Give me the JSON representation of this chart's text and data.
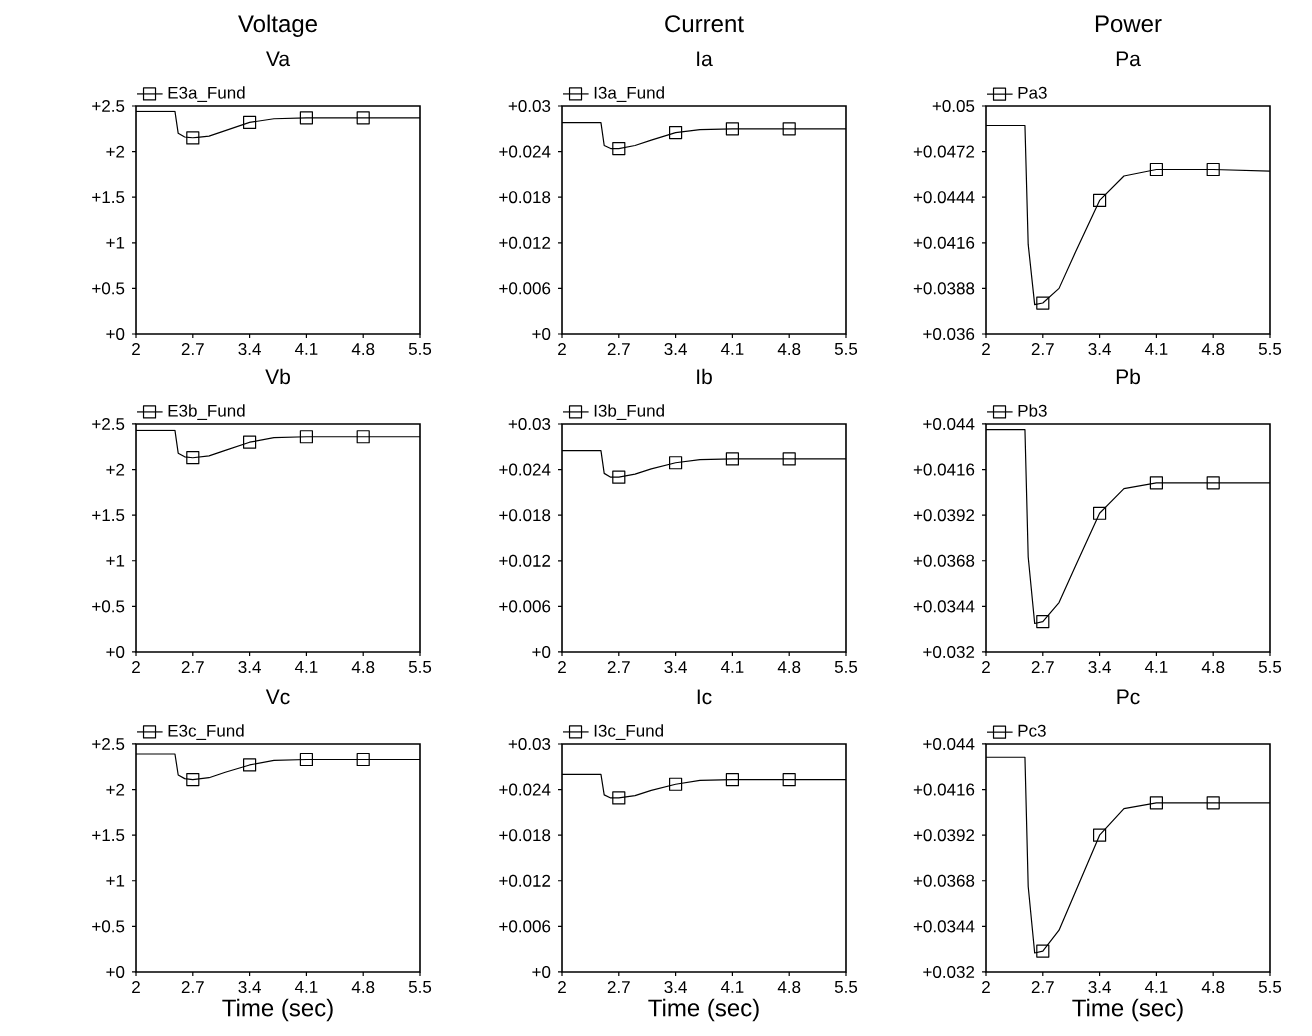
{
  "chart_data": [
    {
      "type": "line",
      "title": "Voltage",
      "subtitle": "Va",
      "x": [
        2,
        2.48,
        2.52,
        2.6,
        2.7,
        2.9,
        3.1,
        3.4,
        3.7,
        4.1,
        4.8,
        5.5
      ],
      "series": [
        {
          "name": "E3a_Fund",
          "color": "#000000",
          "marker": "none",
          "values": [
            2.44,
            2.44,
            2.2,
            2.16,
            2.15,
            2.17,
            2.23,
            2.32,
            2.36,
            2.37,
            2.37,
            2.37
          ]
        },
        {
          "type": "scatter",
          "color": "#000000",
          "x": [
            2.7,
            3.4,
            4.1,
            4.8
          ],
          "values": [
            2.15,
            2.32,
            2.37,
            2.37
          ]
        }
      ],
      "xlim": [
        2,
        5.5
      ],
      "xticks": [
        2,
        2.7,
        3.4,
        4.1,
        4.8,
        5.5
      ],
      "ylim": [
        0,
        2.5
      ],
      "yticks": [
        {
          "value": 0,
          "label": "+0"
        },
        {
          "value": 0.5,
          "label": "+0.5"
        },
        {
          "value": 1,
          "label": "+1"
        },
        {
          "value": 1.5,
          "label": "+1.5"
        },
        {
          "value": 2,
          "label": "+2"
        },
        {
          "value": 2.5,
          "label": "+2.5"
        }
      ],
      "legend": "top left",
      "marker": "square"
    },
    {
      "type": "line",
      "title": "Current",
      "subtitle": "Ia",
      "x": [
        2,
        2.48,
        2.52,
        2.6,
        2.7,
        2.9,
        3.1,
        3.4,
        3.7,
        4.1,
        4.8,
        5.5
      ],
      "series": [
        {
          "name": "I3a_Fund",
          "color": "#000000",
          "marker": "none",
          "values": [
            0.0278,
            0.0278,
            0.0248,
            0.0244,
            0.0244,
            0.0248,
            0.0255,
            0.0265,
            0.0269,
            0.027,
            0.027,
            0.027
          ]
        },
        {
          "type": "scatter",
          "color": "#000000",
          "x": [
            2.7,
            3.4,
            4.1,
            4.8
          ],
          "values": [
            0.0244,
            0.0265,
            0.027,
            0.027
          ]
        }
      ],
      "xlim": [
        2,
        5.5
      ],
      "xticks": [
        2,
        2.7,
        3.4,
        4.1,
        4.8,
        5.5
      ],
      "ylim": [
        0,
        0.03
      ],
      "yticks": [
        {
          "value": 0,
          "label": "+0"
        },
        {
          "value": 0.006,
          "label": "+0.006"
        },
        {
          "value": 0.012,
          "label": "+0.012"
        },
        {
          "value": 0.018,
          "label": "+0.018"
        },
        {
          "value": 0.024,
          "label": "+0.024"
        },
        {
          "value": 0.03,
          "label": "+0.03"
        }
      ],
      "legend": "top left",
      "marker": "square"
    },
    {
      "type": "line",
      "title": "Power",
      "subtitle": "Pa",
      "x": [
        2,
        2.48,
        2.52,
        2.6,
        2.7,
        2.9,
        3.1,
        3.4,
        3.7,
        4.1,
        4.8,
        5.5
      ],
      "series": [
        {
          "name": "Pa3",
          "color": "#000000",
          "marker": "none",
          "values": [
            0.0488,
            0.0488,
            0.0415,
            0.0378,
            0.0379,
            0.0388,
            0.041,
            0.0442,
            0.0457,
            0.0461,
            0.0461,
            0.046
          ]
        },
        {
          "type": "scatter",
          "color": "#000000",
          "x": [
            2.7,
            3.4,
            4.1,
            4.8
          ],
          "values": [
            0.0379,
            0.0442,
            0.0461,
            0.0461
          ]
        }
      ],
      "xlim": [
        2,
        5.5
      ],
      "xticks": [
        2,
        2.7,
        3.4,
        4.1,
        4.8,
        5.5
      ],
      "ylim": [
        0.036,
        0.05
      ],
      "yticks": [
        {
          "value": 0.036,
          "label": "+0.036"
        },
        {
          "value": 0.0388,
          "label": "+0.0388"
        },
        {
          "value": 0.0416,
          "label": "+0.0416"
        },
        {
          "value": 0.0444,
          "label": "+0.0444"
        },
        {
          "value": 0.0472,
          "label": "+0.0472"
        },
        {
          "value": 0.05,
          "label": "+0.05"
        }
      ],
      "legend": "top left",
      "marker": "square"
    },
    {
      "type": "line",
      "title": "Vb",
      "x": [
        2,
        2.48,
        2.52,
        2.6,
        2.7,
        2.9,
        3.1,
        3.4,
        3.7,
        4.1,
        4.8,
        5.5
      ],
      "series": [
        {
          "name": "E3b_Fund",
          "color": "#000000",
          "marker": "none",
          "values": [
            2.43,
            2.43,
            2.18,
            2.14,
            2.13,
            2.15,
            2.21,
            2.3,
            2.35,
            2.36,
            2.36,
            2.36
          ]
        },
        {
          "type": "scatter",
          "color": "#000000",
          "x": [
            2.7,
            3.4,
            4.1,
            4.8
          ],
          "values": [
            2.13,
            2.3,
            2.36,
            2.36
          ]
        }
      ],
      "xlim": [
        2,
        5.5
      ],
      "xticks": [
        2,
        2.7,
        3.4,
        4.1,
        4.8,
        5.5
      ],
      "ylim": [
        0,
        2.5
      ],
      "yticks": [
        {
          "value": 0,
          "label": "+0"
        },
        {
          "value": 0.5,
          "label": "+0.5"
        },
        {
          "value": 1,
          "label": "+1"
        },
        {
          "value": 1.5,
          "label": "+1.5"
        },
        {
          "value": 2,
          "label": "+2"
        },
        {
          "value": 2.5,
          "label": "+2.5"
        }
      ],
      "legend": "top left",
      "marker": "square"
    },
    {
      "type": "line",
      "title": "Ib",
      "x": [
        2,
        2.48,
        2.52,
        2.6,
        2.7,
        2.9,
        3.1,
        3.4,
        3.7,
        4.1,
        4.8,
        5.5
      ],
      "series": [
        {
          "name": "I3b_Fund",
          "color": "#000000",
          "marker": "none",
          "values": [
            0.0265,
            0.0265,
            0.0235,
            0.023,
            0.023,
            0.0234,
            0.0241,
            0.0249,
            0.0253,
            0.0254,
            0.0254,
            0.0254
          ]
        },
        {
          "type": "scatter",
          "color": "#000000",
          "x": [
            2.7,
            3.4,
            4.1,
            4.8
          ],
          "values": [
            0.023,
            0.0249,
            0.0254,
            0.0254
          ]
        }
      ],
      "xlim": [
        2,
        5.5
      ],
      "xticks": [
        2,
        2.7,
        3.4,
        4.1,
        4.8,
        5.5
      ],
      "ylim": [
        0,
        0.03
      ],
      "yticks": [
        {
          "value": 0,
          "label": "+0"
        },
        {
          "value": 0.006,
          "label": "+0.006"
        },
        {
          "value": 0.012,
          "label": "+0.012"
        },
        {
          "value": 0.018,
          "label": "+0.018"
        },
        {
          "value": 0.024,
          "label": "+0.024"
        },
        {
          "value": 0.03,
          "label": "+0.03"
        }
      ],
      "legend": "top left",
      "marker": "square"
    },
    {
      "type": "line",
      "title": "Pb",
      "x": [
        2,
        2.48,
        2.52,
        2.6,
        2.7,
        2.9,
        3.1,
        3.4,
        3.7,
        4.1,
        4.8,
        5.5
      ],
      "series": [
        {
          "name": "Pb3",
          "color": "#000000",
          "marker": "none",
          "values": [
            0.0437,
            0.0437,
            0.037,
            0.0335,
            0.0336,
            0.0346,
            0.0365,
            0.0393,
            0.0406,
            0.0409,
            0.0409,
            0.0409
          ]
        },
        {
          "type": "scatter",
          "color": "#000000",
          "x": [
            2.7,
            3.4,
            4.1,
            4.8
          ],
          "values": [
            0.0336,
            0.0393,
            0.0409,
            0.0409
          ]
        }
      ],
      "xlim": [
        2,
        5.5
      ],
      "xticks": [
        2,
        2.7,
        3.4,
        4.1,
        4.8,
        5.5
      ],
      "ylim": [
        0.032,
        0.044
      ],
      "yticks": [
        {
          "value": 0.032,
          "label": "+0.032"
        },
        {
          "value": 0.0344,
          "label": "+0.0344"
        },
        {
          "value": 0.0368,
          "label": "+0.0368"
        },
        {
          "value": 0.0392,
          "label": "+0.0392"
        },
        {
          "value": 0.0416,
          "label": "+0.0416"
        },
        {
          "value": 0.044,
          "label": "+0.044"
        }
      ],
      "legend": "top left",
      "marker": "square"
    },
    {
      "type": "line",
      "title": "Vc",
      "xlabel": "Time (sec)",
      "x": [
        2,
        2.48,
        2.52,
        2.6,
        2.7,
        2.9,
        3.1,
        3.4,
        3.7,
        4.1,
        4.8,
        5.5
      ],
      "series": [
        {
          "name": "E3c_Fund",
          "color": "#000000",
          "marker": "none",
          "values": [
            2.39,
            2.39,
            2.16,
            2.12,
            2.11,
            2.13,
            2.19,
            2.27,
            2.32,
            2.33,
            2.33,
            2.33
          ]
        },
        {
          "type": "scatter",
          "color": "#000000",
          "x": [
            2.7,
            3.4,
            4.1,
            4.8
          ],
          "values": [
            2.11,
            2.27,
            2.33,
            2.33
          ]
        }
      ],
      "xlim": [
        2,
        5.5
      ],
      "xticks": [
        2,
        2.7,
        3.4,
        4.1,
        4.8,
        5.5
      ],
      "ylim": [
        0,
        2.5
      ],
      "yticks": [
        {
          "value": 0,
          "label": "+0"
        },
        {
          "value": 0.5,
          "label": "+0.5"
        },
        {
          "value": 1,
          "label": "+1"
        },
        {
          "value": 1.5,
          "label": "+1.5"
        },
        {
          "value": 2,
          "label": "+2"
        },
        {
          "value": 2.5,
          "label": "+2.5"
        }
      ],
      "legend": "top left",
      "marker": "square"
    },
    {
      "type": "line",
      "title": "Ic",
      "xlabel": "Time (sec)",
      "x": [
        2,
        2.48,
        2.52,
        2.6,
        2.7,
        2.9,
        3.1,
        3.4,
        3.7,
        4.1,
        4.8,
        5.5
      ],
      "series": [
        {
          "name": "I3c_Fund",
          "color": "#000000",
          "marker": "none",
          "values": [
            0.026,
            0.026,
            0.0233,
            0.0229,
            0.0229,
            0.0232,
            0.0239,
            0.0247,
            0.0252,
            0.0253,
            0.0253,
            0.0253
          ]
        },
        {
          "type": "scatter",
          "color": "#000000",
          "x": [
            2.7,
            3.4,
            4.1,
            4.8
          ],
          "values": [
            0.0229,
            0.0247,
            0.0253,
            0.0253
          ]
        }
      ],
      "xlim": [
        2,
        5.5
      ],
      "xticks": [
        2,
        2.7,
        3.4,
        4.1,
        4.8,
        5.5
      ],
      "ylim": [
        0,
        0.03
      ],
      "yticks": [
        {
          "value": 0,
          "label": "+0"
        },
        {
          "value": 0.006,
          "label": "+0.006"
        },
        {
          "value": 0.012,
          "label": "+0.012"
        },
        {
          "value": 0.018,
          "label": "+0.018"
        },
        {
          "value": 0.024,
          "label": "+0.024"
        },
        {
          "value": 0.03,
          "label": "+0.03"
        }
      ],
      "legend": "top left",
      "marker": "square"
    },
    {
      "type": "line",
      "title": "Pc",
      "xlabel": "Time (sec)",
      "x": [
        2,
        2.48,
        2.52,
        2.6,
        2.7,
        2.9,
        3.1,
        3.4,
        3.7,
        4.1,
        4.8,
        5.5
      ],
      "series": [
        {
          "name": "Pc3",
          "color": "#000000",
          "marker": "none",
          "values": [
            0.0433,
            0.0433,
            0.0365,
            0.033,
            0.0331,
            0.0342,
            0.0362,
            0.0392,
            0.0406,
            0.0409,
            0.0409,
            0.0409
          ]
        },
        {
          "type": "scatter",
          "color": "#000000",
          "x": [
            2.7,
            3.4,
            4.1,
            4.8
          ],
          "values": [
            0.0331,
            0.0392,
            0.0409,
            0.0409
          ]
        }
      ],
      "xlim": [
        2,
        5.5
      ],
      "xticks": [
        2,
        2.7,
        3.4,
        4.1,
        4.8,
        5.5
      ],
      "ylim": [
        0.032,
        0.044
      ],
      "yticks": [
        {
          "value": 0.032,
          "label": "+0.032"
        },
        {
          "value": 0.0344,
          "label": "+0.0344"
        },
        {
          "value": 0.0368,
          "label": "+0.0368"
        },
        {
          "value": 0.0392,
          "label": "+0.0392"
        },
        {
          "value": 0.0416,
          "label": "+0.0416"
        },
        {
          "value": 0.044,
          "label": "+0.044"
        }
      ],
      "legend": "top left",
      "marker": "square"
    }
  ]
}
